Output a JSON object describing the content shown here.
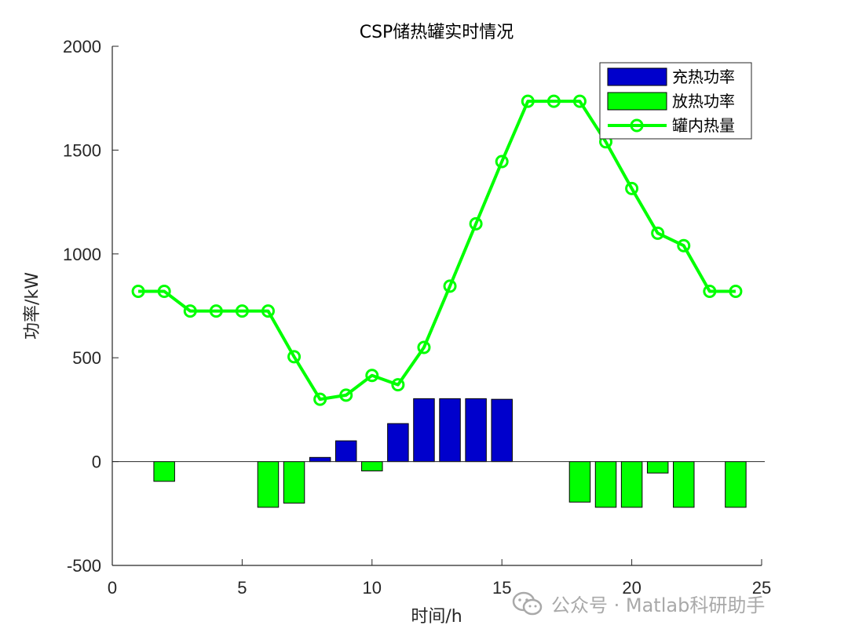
{
  "chart_data": {
    "type": "bar",
    "title": "CSP储热罐实时情况",
    "xlabel": "时间/h",
    "ylabel": "功率/kW",
    "xlim": [
      0,
      25
    ],
    "ylim": [
      -500,
      2000
    ],
    "x_ticks": [
      "0",
      "5",
      "10",
      "15",
      "20",
      "25"
    ],
    "y_ticks": [
      "-500",
      "0",
      "500",
      "1000",
      "1500",
      "2000"
    ],
    "legend_position": "top-right",
    "series": [
      {
        "name": "充热功率",
        "kind": "bar",
        "color": "#0000cc",
        "x": [
          8,
          9,
          11,
          12,
          13,
          14,
          15
        ],
        "values": [
          20,
          100,
          183,
          303,
          303,
          303,
          300
        ]
      },
      {
        "name": "放热功率",
        "kind": "bar",
        "color": "#00ff00",
        "x": [
          2,
          6,
          7,
          10,
          18,
          19,
          20,
          21,
          22,
          24
        ],
        "values": [
          -95,
          -220,
          -200,
          -45,
          -195,
          -220,
          -220,
          -55,
          -220,
          -220
        ]
      },
      {
        "name": "罐内热量",
        "kind": "line",
        "color": "#00ff00",
        "marker": "circle",
        "x": [
          1,
          2,
          3,
          4,
          5,
          6,
          7,
          8,
          9,
          10,
          11,
          12,
          13,
          14,
          15,
          16,
          17,
          18,
          19,
          20,
          21,
          22,
          23,
          24
        ],
        "values": [
          820,
          820,
          725,
          725,
          725,
          725,
          505,
          300,
          320,
          415,
          370,
          550,
          845,
          1145,
          1445,
          1735,
          1735,
          1735,
          1540,
          1315,
          1100,
          1040,
          820,
          820
        ]
      }
    ]
  },
  "watermark": {
    "text": "公众号 · Matlab科研助手",
    "icon": "wechat-icon"
  }
}
